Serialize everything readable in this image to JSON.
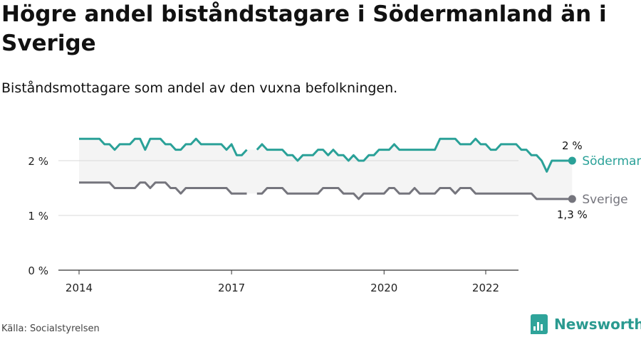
{
  "title": "Högre andel biståndstagare i Södermanland än i Sverige",
  "subtitle": "Biståndsmottagare som andel av den vuxna befolkningen.",
  "source": "Källa: Socialstyrelsen",
  "brand": {
    "name": "Newsworthy",
    "color": "#2fa49a"
  },
  "chart_data": {
    "type": "line",
    "xlim": [
      2014.0,
      2023.0
    ],
    "ylim": [
      0,
      2.5
    ],
    "x_ticks": [
      {
        "value": 2014,
        "label": "2014"
      },
      {
        "value": 2017,
        "label": "2017"
      },
      {
        "value": 2020,
        "label": "2020"
      },
      {
        "value": 2022,
        "label": "2022"
      }
    ],
    "y_ticks": [
      {
        "value": 0,
        "label": "0 %"
      },
      {
        "value": 1,
        "label": "1 %"
      },
      {
        "value": 2,
        "label": "2 %"
      }
    ],
    "grid": true,
    "band_between_series": true,
    "series": [
      {
        "name": "Södermanlands län",
        "color": "#2aa198",
        "end_label": "2 %",
        "points": [
          [
            2014.0,
            2.4
          ],
          [
            2014.1,
            2.4
          ],
          [
            2014.2,
            2.4
          ],
          [
            2014.3,
            2.4
          ],
          [
            2014.4,
            2.4
          ],
          [
            2014.5,
            2.3
          ],
          [
            2014.6,
            2.3
          ],
          [
            2014.7,
            2.2
          ],
          [
            2014.8,
            2.3
          ],
          [
            2014.9,
            2.3
          ],
          [
            2015.0,
            2.3
          ],
          [
            2015.1,
            2.4
          ],
          [
            2015.2,
            2.4
          ],
          [
            2015.3,
            2.2
          ],
          [
            2015.4,
            2.4
          ],
          [
            2015.5,
            2.4
          ],
          [
            2015.6,
            2.4
          ],
          [
            2015.7,
            2.3
          ],
          [
            2015.8,
            2.3
          ],
          [
            2015.9,
            2.2
          ],
          [
            2016.0,
            2.2
          ],
          [
            2016.1,
            2.3
          ],
          [
            2016.2,
            2.3
          ],
          [
            2016.3,
            2.4
          ],
          [
            2016.4,
            2.3
          ],
          [
            2016.5,
            2.3
          ],
          [
            2016.6,
            2.3
          ],
          [
            2016.7,
            2.3
          ],
          [
            2016.8,
            2.3
          ],
          [
            2016.9,
            2.2
          ],
          [
            2017.0,
            2.3
          ],
          [
            2017.1,
            2.1
          ],
          [
            2017.2,
            2.1
          ],
          [
            2017.3,
            2.2
          ],
          null,
          [
            2017.5,
            2.2
          ],
          [
            2017.6,
            2.3
          ],
          [
            2017.7,
            2.2
          ],
          [
            2017.8,
            2.2
          ],
          [
            2017.9,
            2.2
          ],
          [
            2018.0,
            2.2
          ],
          [
            2018.1,
            2.1
          ],
          [
            2018.2,
            2.1
          ],
          [
            2018.3,
            2.0
          ],
          [
            2018.4,
            2.1
          ],
          [
            2018.5,
            2.1
          ],
          [
            2018.6,
            2.1
          ],
          [
            2018.7,
            2.2
          ],
          [
            2018.8,
            2.2
          ],
          [
            2018.9,
            2.1
          ],
          [
            2019.0,
            2.2
          ],
          [
            2019.1,
            2.1
          ],
          [
            2019.2,
            2.1
          ],
          [
            2019.3,
            2.0
          ],
          [
            2019.4,
            2.1
          ],
          [
            2019.5,
            2.0
          ],
          [
            2019.6,
            2.0
          ],
          [
            2019.7,
            2.1
          ],
          [
            2019.8,
            2.1
          ],
          [
            2019.9,
            2.2
          ],
          [
            2020.0,
            2.2
          ],
          [
            2020.1,
            2.2
          ],
          [
            2020.2,
            2.3
          ],
          [
            2020.3,
            2.2
          ],
          [
            2020.4,
            2.2
          ],
          [
            2020.5,
            2.2
          ],
          [
            2020.6,
            2.2
          ],
          [
            2020.7,
            2.2
          ],
          [
            2020.8,
            2.2
          ],
          [
            2020.9,
            2.2
          ],
          [
            2021.0,
            2.2
          ],
          [
            2021.1,
            2.4
          ],
          [
            2021.2,
            2.4
          ],
          [
            2021.3,
            2.4
          ],
          [
            2021.4,
            2.4
          ],
          [
            2021.5,
            2.3
          ],
          [
            2021.6,
            2.3
          ],
          [
            2021.7,
            2.3
          ],
          [
            2021.8,
            2.4
          ],
          [
            2021.9,
            2.3
          ],
          [
            2022.0,
            2.3
          ],
          [
            2022.1,
            2.2
          ],
          [
            2022.2,
            2.2
          ],
          [
            2022.3,
            2.3
          ],
          [
            2022.4,
            2.3
          ],
          [
            2022.5,
            2.3
          ],
          [
            2022.6,
            2.3
          ],
          [
            2022.7,
            2.2
          ],
          [
            2022.8,
            2.2
          ],
          [
            2022.9,
            2.1
          ],
          [
            2023.0,
            2.1
          ],
          [
            2023.1,
            2.0
          ],
          [
            2023.2,
            1.8
          ],
          [
            2023.3,
            2.0
          ],
          [
            2023.4,
            2.0
          ],
          [
            2023.5,
            2.0
          ],
          [
            2023.6,
            2.0
          ],
          [
            2023.7,
            2.0
          ]
        ]
      },
      {
        "name": "Sverige",
        "color": "#75757d",
        "end_label": "1,3 %",
        "points": [
          [
            2014.0,
            1.6
          ],
          [
            2014.1,
            1.6
          ],
          [
            2014.2,
            1.6
          ],
          [
            2014.3,
            1.6
          ],
          [
            2014.4,
            1.6
          ],
          [
            2014.5,
            1.6
          ],
          [
            2014.6,
            1.6
          ],
          [
            2014.7,
            1.5
          ],
          [
            2014.8,
            1.5
          ],
          [
            2014.9,
            1.5
          ],
          [
            2015.0,
            1.5
          ],
          [
            2015.1,
            1.5
          ],
          [
            2015.2,
            1.6
          ],
          [
            2015.3,
            1.6
          ],
          [
            2015.4,
            1.5
          ],
          [
            2015.5,
            1.6
          ],
          [
            2015.6,
            1.6
          ],
          [
            2015.7,
            1.6
          ],
          [
            2015.8,
            1.5
          ],
          [
            2015.9,
            1.5
          ],
          [
            2016.0,
            1.4
          ],
          [
            2016.1,
            1.5
          ],
          [
            2016.2,
            1.5
          ],
          [
            2016.3,
            1.5
          ],
          [
            2016.4,
            1.5
          ],
          [
            2016.5,
            1.5
          ],
          [
            2016.6,
            1.5
          ],
          [
            2016.7,
            1.5
          ],
          [
            2016.8,
            1.5
          ],
          [
            2016.9,
            1.5
          ],
          [
            2017.0,
            1.4
          ],
          [
            2017.1,
            1.4
          ],
          [
            2017.2,
            1.4
          ],
          [
            2017.3,
            1.4
          ],
          null,
          [
            2017.5,
            1.4
          ],
          [
            2017.6,
            1.4
          ],
          [
            2017.7,
            1.5
          ],
          [
            2017.8,
            1.5
          ],
          [
            2017.9,
            1.5
          ],
          [
            2018.0,
            1.5
          ],
          [
            2018.1,
            1.4
          ],
          [
            2018.2,
            1.4
          ],
          [
            2018.3,
            1.4
          ],
          [
            2018.4,
            1.4
          ],
          [
            2018.5,
            1.4
          ],
          [
            2018.6,
            1.4
          ],
          [
            2018.7,
            1.4
          ],
          [
            2018.8,
            1.5
          ],
          [
            2018.9,
            1.5
          ],
          [
            2019.0,
            1.5
          ],
          [
            2019.1,
            1.5
          ],
          [
            2019.2,
            1.4
          ],
          [
            2019.3,
            1.4
          ],
          [
            2019.4,
            1.4
          ],
          [
            2019.5,
            1.3
          ],
          [
            2019.6,
            1.4
          ],
          [
            2019.7,
            1.4
          ],
          [
            2019.8,
            1.4
          ],
          [
            2019.9,
            1.4
          ],
          [
            2020.0,
            1.4
          ],
          [
            2020.1,
            1.5
          ],
          [
            2020.2,
            1.5
          ],
          [
            2020.3,
            1.4
          ],
          [
            2020.4,
            1.4
          ],
          [
            2020.5,
            1.4
          ],
          [
            2020.6,
            1.5
          ],
          [
            2020.7,
            1.4
          ],
          [
            2020.8,
            1.4
          ],
          [
            2020.9,
            1.4
          ],
          [
            2021.0,
            1.4
          ],
          [
            2021.1,
            1.5
          ],
          [
            2021.2,
            1.5
          ],
          [
            2021.3,
            1.5
          ],
          [
            2021.4,
            1.4
          ],
          [
            2021.5,
            1.5
          ],
          [
            2021.6,
            1.5
          ],
          [
            2021.7,
            1.5
          ],
          [
            2021.8,
            1.4
          ],
          [
            2021.9,
            1.4
          ],
          [
            2022.0,
            1.4
          ],
          [
            2022.1,
            1.4
          ],
          [
            2022.2,
            1.4
          ],
          [
            2022.3,
            1.4
          ],
          [
            2022.4,
            1.4
          ],
          [
            2022.5,
            1.4
          ],
          [
            2022.6,
            1.4
          ],
          [
            2022.7,
            1.4
          ],
          [
            2022.8,
            1.4
          ],
          [
            2022.9,
            1.4
          ],
          [
            2023.0,
            1.3
          ],
          [
            2023.1,
            1.3
          ],
          [
            2023.2,
            1.3
          ],
          [
            2023.3,
            1.3
          ],
          [
            2023.4,
            1.3
          ],
          [
            2023.5,
            1.3
          ],
          [
            2023.6,
            1.3
          ],
          [
            2023.7,
            1.3
          ]
        ]
      }
    ]
  }
}
